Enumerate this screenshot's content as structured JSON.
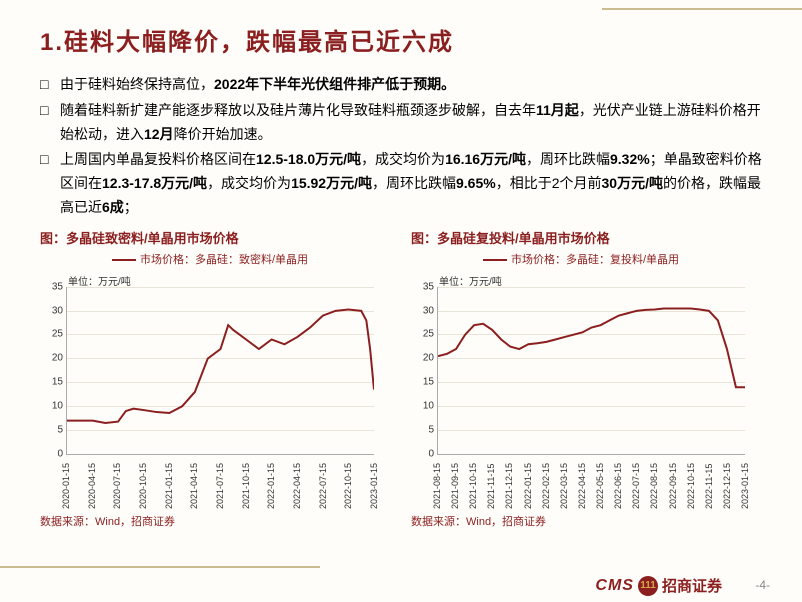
{
  "title": "1.硅料大幅降价，跌幅最高已近六成",
  "bullets": [
    "由于硅料始终保持高位，<b>2022年下半年光伏组件排产低于预期。</b>",
    "随着硅料新扩建产能逐步释放以及硅片薄片化导致硅料瓶颈逐步破解，自去年<b>11月起</b>，光伏产业链上游硅料价格开始松动，进入<b>12月</b>降价开始加速。",
    "上周国内单晶复投料价格区间在<b>12.5-18.0万元/吨</b>，成交均价为<b>16.16万元/吨</b>，周环比跌幅<b>9.32%</b>；单晶致密料价格区间在<b>12.3-17.8万元/吨</b>，成交均价为<b>15.92万元/吨</b>，周环比跌幅<b>9.65%</b>，相比于2个月前<b>30万元/吨</b>的价格，跌幅最高已近<b>6成</b>；"
  ],
  "charts": [
    {
      "title": "图：多晶硅致密料/单晶用市场价格",
      "legend": "市场价格：多晶硅：致密料/单晶用",
      "ylabel": "单位：万元/吨",
      "ylim": [
        0,
        35
      ],
      "ytick_step": 5,
      "xticks": [
        "2020-01-15",
        "2020-04-15",
        "2020-07-15",
        "2020-10-15",
        "2021-01-15",
        "2021-04-15",
        "2021-07-15",
        "2021-10-15",
        "2022-01-15",
        "2022-04-15",
        "2022-07-15",
        "2022-10-15",
        "2023-01-15"
      ],
      "line_color": "#8b1f1f",
      "line_width": 2,
      "grid_color": "#e8e4d8",
      "points": [
        [
          0,
          7
        ],
        [
          0.5,
          7
        ],
        [
          1,
          7
        ],
        [
          1.5,
          6.5
        ],
        [
          2,
          6.8
        ],
        [
          2.3,
          9
        ],
        [
          2.6,
          9.5
        ],
        [
          3,
          9.2
        ],
        [
          3.5,
          8.8
        ],
        [
          4,
          8.6
        ],
        [
          4.5,
          10
        ],
        [
          5,
          13
        ],
        [
          5.5,
          20
        ],
        [
          6,
          22
        ],
        [
          6.3,
          27
        ],
        [
          6.5,
          26
        ],
        [
          7,
          24
        ],
        [
          7.5,
          22
        ],
        [
          8,
          24
        ],
        [
          8.5,
          23
        ],
        [
          9,
          24.5
        ],
        [
          9.5,
          26.5
        ],
        [
          10,
          29
        ],
        [
          10.5,
          30
        ],
        [
          11,
          30.3
        ],
        [
          11.5,
          30
        ],
        [
          11.7,
          28
        ],
        [
          11.85,
          22
        ],
        [
          12,
          13.5
        ]
      ],
      "source": "数据来源：Wind，招商证券"
    },
    {
      "title": "图：多晶硅复投料/单晶用市场价格",
      "legend": "市场价格：多晶硅：复投料/单晶用",
      "ylabel": "单位：万元/吨",
      "ylim": [
        0,
        35
      ],
      "ytick_step": 5,
      "xticks": [
        "2021-08-15",
        "2021-09-15",
        "2021-10-15",
        "2021-11-15",
        "2021-12-15",
        "2022-01-15",
        "2022-02-15",
        "2022-03-15",
        "2022-04-15",
        "2022-05-15",
        "2022-06-15",
        "2022-07-15",
        "2022-08-15",
        "2022-09-15",
        "2022-10-15",
        "2022-11-15",
        "2022-12-15",
        "2023-01-15"
      ],
      "line_color": "#8b1f1f",
      "line_width": 2,
      "grid_color": "#e8e4d8",
      "points": [
        [
          0,
          20.5
        ],
        [
          0.5,
          21
        ],
        [
          1,
          22
        ],
        [
          1.5,
          25
        ],
        [
          2,
          27
        ],
        [
          2.5,
          27.3
        ],
        [
          3,
          26
        ],
        [
          3.5,
          24
        ],
        [
          4,
          22.5
        ],
        [
          4.5,
          22
        ],
        [
          5,
          23
        ],
        [
          5.5,
          23.2
        ],
        [
          6,
          23.5
        ],
        [
          6.5,
          24
        ],
        [
          7,
          24.5
        ],
        [
          7.5,
          25
        ],
        [
          8,
          25.5
        ],
        [
          8.5,
          26.5
        ],
        [
          9,
          27
        ],
        [
          9.5,
          28
        ],
        [
          10,
          29
        ],
        [
          10.5,
          29.5
        ],
        [
          11,
          30
        ],
        [
          11.5,
          30.2
        ],
        [
          12,
          30.3
        ],
        [
          12.5,
          30.5
        ],
        [
          13,
          30.5
        ],
        [
          13.5,
          30.5
        ],
        [
          14,
          30.5
        ],
        [
          14.5,
          30.3
        ],
        [
          15,
          30
        ],
        [
          15.5,
          28
        ],
        [
          16,
          22
        ],
        [
          16.5,
          14
        ],
        [
          17,
          14
        ]
      ],
      "source": "数据来源：Wind，招商证券"
    }
  ],
  "footer": {
    "cms": "CMS",
    "circle": "111",
    "brand": "招商证券",
    "page": "-4-"
  }
}
